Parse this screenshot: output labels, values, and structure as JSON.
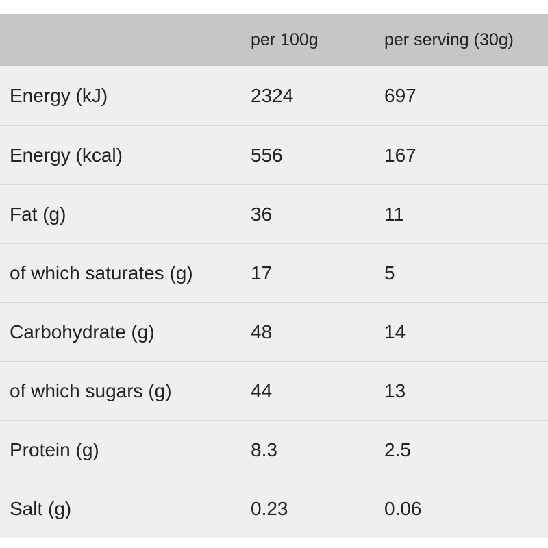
{
  "table": {
    "headers": [
      "",
      "per 100g",
      "per serving (30g)"
    ],
    "rows": [
      {
        "label": "Energy (kJ)",
        "per_100g": "2324",
        "per_serving": "697"
      },
      {
        "label": "Energy (kcal)",
        "per_100g": "556",
        "per_serving": "167"
      },
      {
        "label": "Fat (g)",
        "per_100g": "36",
        "per_serving": "11"
      },
      {
        "label": "of which saturates (g)",
        "per_100g": "17",
        "per_serving": "5"
      },
      {
        "label": "Carbohydrate (g)",
        "per_100g": "48",
        "per_serving": "14"
      },
      {
        "label": "of which sugars (g)",
        "per_100g": "44",
        "per_serving": "13"
      },
      {
        "label": "Protein (g)",
        "per_100g": "8.3",
        "per_serving": "2.5"
      },
      {
        "label": "Salt (g)",
        "per_100g": "0.23",
        "per_serving": "0.06"
      }
    ]
  },
  "colors": {
    "header_bg": "#c6c6c6",
    "row_bg": "#efefef",
    "divider": "#d6d6d6",
    "text": "#222222"
  }
}
